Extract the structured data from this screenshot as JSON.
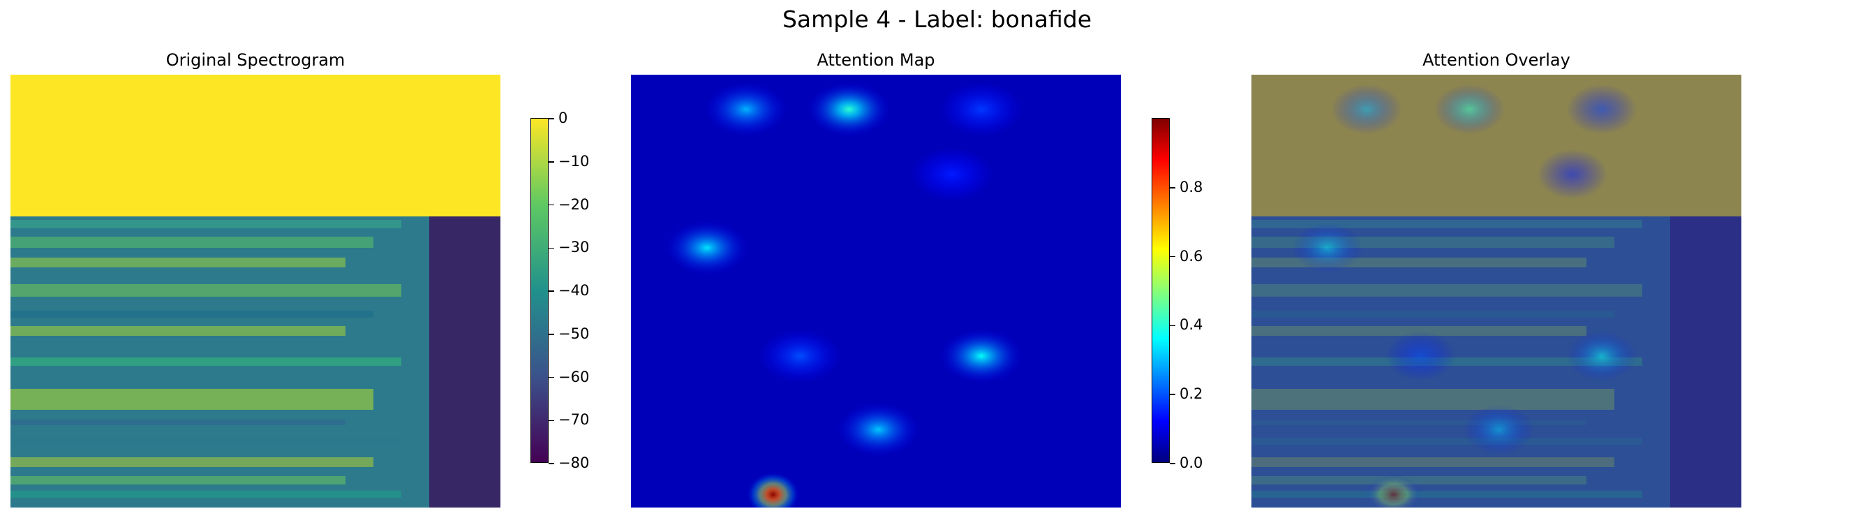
{
  "figure": {
    "suptitle": "Sample 4 - Label: bonafide"
  },
  "panels": [
    {
      "title": "Original Spectrogram"
    },
    {
      "title": "Attention Map"
    },
    {
      "title": "Attention Overlay"
    }
  ],
  "colormaps": {
    "viridis": [
      "#440154",
      "#3b528b",
      "#21918c",
      "#5ec962",
      "#fde725"
    ],
    "jet": [
      "#00007f",
      "#0000ff",
      "#00ffff",
      "#ffff00",
      "#ff0000",
      "#7f0000"
    ]
  },
  "chart_data": [
    {
      "type": "heatmap",
      "title": "Original Spectrogram",
      "colormap": "viridis",
      "colorbar": {
        "ticks": [
          0,
          -10,
          -20,
          -30,
          -40,
          -50,
          -60,
          -70,
          -80
        ],
        "range": [
          -80,
          0
        ]
      },
      "notes_levels": {
        "top_region": 0,
        "background": -45,
        "high_region": -75
      }
    },
    {
      "type": "heatmap",
      "title": "Attention Map",
      "colormap": "jet",
      "colorbar": {
        "ticks": [
          0.0,
          0.2,
          0.4,
          0.6,
          0.8
        ],
        "range": [
          0.0,
          1.0
        ]
      },
      "peaks": [
        {
          "x": 0.235,
          "y": 0.08,
          "value": 0.3
        },
        {
          "x": 0.445,
          "y": 0.08,
          "value": 0.42
        },
        {
          "x": 0.715,
          "y": 0.08,
          "value": 0.18
        },
        {
          "x": 0.655,
          "y": 0.23,
          "value": 0.15
        },
        {
          "x": 0.155,
          "y": 0.4,
          "value": 0.35
        },
        {
          "x": 0.345,
          "y": 0.65,
          "value": 0.2
        },
        {
          "x": 0.715,
          "y": 0.65,
          "value": 0.38
        },
        {
          "x": 0.505,
          "y": 0.82,
          "value": 0.32
        },
        {
          "x": 0.29,
          "y": 0.97,
          "value": 0.99
        }
      ]
    },
    {
      "type": "heatmap",
      "title": "Attention Overlay",
      "colormap": "jet over viridis"
    }
  ]
}
